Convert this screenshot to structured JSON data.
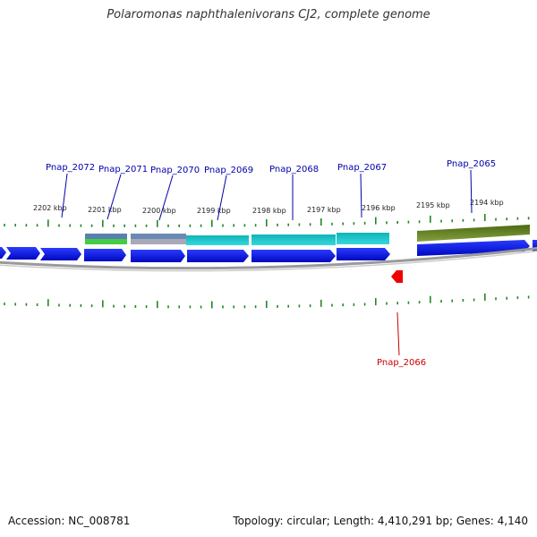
{
  "title": "Polaromonas naphthalenivorans CJ2, complete genome",
  "footer": {
    "accession": "Accession: NC_008781",
    "summary": "Topology: circular; Length: 4,410,291 bp; Genes: 4,140"
  },
  "scale_ticks": [
    "2202 kbp",
    "2201 kbp",
    "2200 kbp",
    "2199 kbp",
    "2198 kbp",
    "2197 kbp",
    "2196 kbp",
    "2195 kbp",
    "2194 kbp"
  ],
  "gene_labels": [
    {
      "text": "Pnap_2072",
      "color": "#0000aa"
    },
    {
      "text": "Pnap_2071",
      "color": "#0000aa"
    },
    {
      "text": "Pnap_2070",
      "color": "#0000aa"
    },
    {
      "text": "Pnap_2069",
      "color": "#0000aa"
    },
    {
      "text": "Pnap_2068",
      "color": "#0000aa"
    },
    {
      "text": "Pnap_2067",
      "color": "#0000aa"
    },
    {
      "text": "Pnap_2065",
      "color": "#0000aa"
    },
    {
      "text": "Pnap_2066",
      "color": "#cc0000"
    }
  ],
  "colors": {
    "forward_gene": "#0a14e6",
    "reverse_gene": "#ee0000",
    "tick": "#228822",
    "backbone": "#888888",
    "feature_teal": "#1fc8cc",
    "feature_olive": "#5a7a1e",
    "feature_green": "#44cc44",
    "feature_steel": "#5b7fae",
    "feature_grey": "#a8a8b8"
  }
}
